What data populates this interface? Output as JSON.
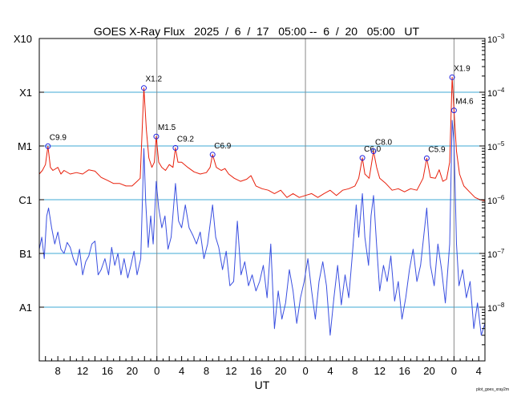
{
  "chart_data": {
    "type": "line",
    "title": "GOES X-Ray Flux   2025  /  6  /  17   05:00 --  6  /  20   05:00   UT",
    "xlabel": "UT",
    "ylabel": "",
    "credit": "plot_goes_xray2m",
    "x_range_hours": [
      0,
      72
    ],
    "x_start": "2025-06-17T05:00",
    "x_end": "2025-06-20T05:00",
    "x_tick_labels": [
      {
        "h": 3,
        "label": "8"
      },
      {
        "h": 7,
        "label": "12"
      },
      {
        "h": 11,
        "label": "16"
      },
      {
        "h": 15,
        "label": "20"
      },
      {
        "h": 19,
        "label": "0"
      },
      {
        "h": 23,
        "label": "4"
      },
      {
        "h": 27,
        "label": "8"
      },
      {
        "h": 31,
        "label": "12"
      },
      {
        "h": 35,
        "label": "16"
      },
      {
        "h": 39,
        "label": "20"
      },
      {
        "h": 43,
        "label": "0"
      },
      {
        "h": 47,
        "label": "4"
      },
      {
        "h": 51,
        "label": "8"
      },
      {
        "h": 55,
        "label": "12"
      },
      {
        "h": 59,
        "label": "16"
      },
      {
        "h": 63,
        "label": "20"
      },
      {
        "h": 67,
        "label": "0"
      },
      {
        "h": 71,
        "label": "4"
      }
    ],
    "day_boundaries_hours": [
      19,
      43,
      67
    ],
    "y_scale": "log",
    "y_range_exp": [
      -9,
      -3
    ],
    "y_left_labels": [
      {
        "exp": -3,
        "label": "X10"
      },
      {
        "exp": -4,
        "label": "X1"
      },
      {
        "exp": -5,
        "label": "M1"
      },
      {
        "exp": -6,
        "label": "C1"
      },
      {
        "exp": -7,
        "label": "B1"
      },
      {
        "exp": -8,
        "label": "A1"
      }
    ],
    "y_right_labels": [
      {
        "exp": -3,
        "label": "10"
      },
      {
        "exp": -4,
        "label": "10"
      },
      {
        "exp": -5,
        "label": "10"
      },
      {
        "exp": -6,
        "label": "10"
      },
      {
        "exp": -7,
        "label": "10"
      },
      {
        "exp": -8,
        "label": "10"
      }
    ],
    "flare_class_gridlines_exp": [
      -4,
      -5,
      -6,
      -7,
      -8
    ],
    "colors": {
      "long_channel": "#e8200c",
      "short_channel": "#3a4fe0",
      "overlap": "#7a14b8",
      "gridline": "#3fa9d6",
      "day_line": "#8a8a8a",
      "flare_marker": "#2222dd"
    },
    "flares": [
      {
        "label": "C9.9",
        "h": 1.4,
        "flux": 9.9e-06
      },
      {
        "label": "X1.2",
        "h": 16.9,
        "flux": 0.00012
      },
      {
        "label": "M1.5",
        "h": 18.9,
        "flux": 1.5e-05
      },
      {
        "label": "C9.2",
        "h": 22.0,
        "flux": 9.2e-06
      },
      {
        "label": "C6.9",
        "h": 28.0,
        "flux": 6.9e-06
      },
      {
        "label": "C6.0",
        "h": 52.2,
        "flux": 6e-06
      },
      {
        "label": "C8.0",
        "h": 54.0,
        "flux": 8e-06
      },
      {
        "label": "C5.9",
        "h": 62.6,
        "flux": 5.9e-06
      },
      {
        "label": "X1.9",
        "h": 66.7,
        "flux": 0.00019
      },
      {
        "label": "M4.6",
        "h": 67.0,
        "flux": 4.6e-05
      }
    ],
    "series": [
      {
        "channel": "long",
        "points": [
          [
            0,
            3e-06
          ],
          [
            0.5,
            3.5e-06
          ],
          [
            1.0,
            4.5e-06
          ],
          [
            1.4,
            9.9e-06
          ],
          [
            1.8,
            4e-06
          ],
          [
            2.2,
            3.5e-06
          ],
          [
            3,
            4e-06
          ],
          [
            3.5,
            3e-06
          ],
          [
            4,
            3.5e-06
          ],
          [
            5,
            3e-06
          ],
          [
            6,
            3.2e-06
          ],
          [
            7,
            3e-06
          ],
          [
            8,
            3.6e-06
          ],
          [
            9,
            3.4e-06
          ],
          [
            10,
            2.6e-06
          ],
          [
            11,
            2.3e-06
          ],
          [
            12,
            2e-06
          ],
          [
            13,
            2e-06
          ],
          [
            14,
            1.8e-06
          ],
          [
            15,
            1.8e-06
          ],
          [
            15.8,
            2.2e-06
          ],
          [
            16.3,
            2.5e-06
          ],
          [
            16.9,
            0.00012
          ],
          [
            17.3,
            2e-05
          ],
          [
            17.7,
            6e-06
          ],
          [
            18.2,
            4e-06
          ],
          [
            18.6,
            5e-06
          ],
          [
            18.9,
            1.5e-05
          ],
          [
            19.3,
            5e-06
          ],
          [
            19.8,
            4e-06
          ],
          [
            20.4,
            3.5e-06
          ],
          [
            21,
            4.5e-06
          ],
          [
            21.6,
            4e-06
          ],
          [
            22.0,
            9.2e-06
          ],
          [
            22.4,
            5e-06
          ],
          [
            23,
            5e-06
          ],
          [
            24,
            4e-06
          ],
          [
            25,
            3.3e-06
          ],
          [
            26,
            3e-06
          ],
          [
            27,
            3.2e-06
          ],
          [
            27.6,
            4e-06
          ],
          [
            28.0,
            6.9e-06
          ],
          [
            28.6,
            4e-06
          ],
          [
            29.4,
            3.5e-06
          ],
          [
            30,
            3.8e-06
          ],
          [
            30.6,
            3e-06
          ],
          [
            31.5,
            2.5e-06
          ],
          [
            32.5,
            2.2e-06
          ],
          [
            33.5,
            2.4e-06
          ],
          [
            34.2,
            2.8e-06
          ],
          [
            35,
            1.8e-06
          ],
          [
            36,
            1.6e-06
          ],
          [
            37,
            1.5e-06
          ],
          [
            38,
            1.3e-06
          ],
          [
            39,
            1.5e-06
          ],
          [
            40,
            1.1e-06
          ],
          [
            41,
            1.3e-06
          ],
          [
            42,
            1.1e-06
          ],
          [
            43,
            1.2e-06
          ],
          [
            44,
            1.3e-06
          ],
          [
            45,
            1.1e-06
          ],
          [
            46,
            1.3e-06
          ],
          [
            47,
            1.5e-06
          ],
          [
            48,
            1.2e-06
          ],
          [
            49,
            1.5e-06
          ],
          [
            50,
            1.6e-06
          ],
          [
            51,
            1.8e-06
          ],
          [
            51.6,
            2.5e-06
          ],
          [
            52.2,
            6e-06
          ],
          [
            52.6,
            3e-06
          ],
          [
            53.3,
            2.5e-06
          ],
          [
            54.0,
            8e-06
          ],
          [
            54.5,
            4e-06
          ],
          [
            55,
            2.5e-06
          ],
          [
            56,
            2e-06
          ],
          [
            57,
            1.5e-06
          ],
          [
            58,
            1.6e-06
          ],
          [
            59,
            1.4e-06
          ],
          [
            60,
            1.6e-06
          ],
          [
            61,
            1.5e-06
          ],
          [
            62,
            2.5e-06
          ],
          [
            62.6,
            5.9e-06
          ],
          [
            63.2,
            2.6e-06
          ],
          [
            64,
            2.5e-06
          ],
          [
            64.6,
            3.6e-06
          ],
          [
            65.2,
            2.2e-06
          ],
          [
            65.8,
            2.4e-06
          ],
          [
            66.3,
            5e-06
          ],
          [
            66.7,
            0.00019
          ],
          [
            67.0,
            4.6e-05
          ],
          [
            67.4,
            8e-06
          ],
          [
            67.9,
            3e-06
          ],
          [
            68.6,
            1.8e-06
          ],
          [
            69.5,
            1.4e-06
          ],
          [
            70.4,
            1.1e-06
          ],
          [
            71.2,
            1e-06
          ],
          [
            72,
            9.5e-07
          ]
        ]
      },
      {
        "channel": "short",
        "points": [
          [
            0,
            1.2e-07
          ],
          [
            0.4,
            2e-07
          ],
          [
            0.8,
            8e-08
          ],
          [
            1.2,
            5e-07
          ],
          [
            1.5,
            7e-07
          ],
          [
            2,
            3e-07
          ],
          [
            2.5,
            1.5e-07
          ],
          [
            3,
            2.5e-07
          ],
          [
            3.5,
            1.2e-07
          ],
          [
            4,
            1e-07
          ],
          [
            4.5,
            1.6e-07
          ],
          [
            5,
            1.3e-07
          ],
          [
            5.5,
            8e-08
          ],
          [
            6,
            6e-08
          ],
          [
            6.5,
            1.2e-07
          ],
          [
            7,
            4e-08
          ],
          [
            7.5,
            7e-08
          ],
          [
            8,
            9e-08
          ],
          [
            8.5,
            1.5e-07
          ],
          [
            9,
            1.7e-07
          ],
          [
            9.5,
            4e-08
          ],
          [
            10,
            5e-08
          ],
          [
            10.6,
            8e-08
          ],
          [
            11.2,
            4e-08
          ],
          [
            11.7,
            1.3e-07
          ],
          [
            12.2,
            6e-08
          ],
          [
            12.7,
            1e-07
          ],
          [
            13.2,
            4e-08
          ],
          [
            13.7,
            8e-08
          ],
          [
            14.3,
            3.5e-08
          ],
          [
            14.8,
            6e-08
          ],
          [
            15.3,
            1.1e-07
          ],
          [
            15.8,
            4e-08
          ],
          [
            16.4,
            8e-08
          ],
          [
            16.9,
            9e-06
          ],
          [
            17.2,
            9e-07
          ],
          [
            17.6,
            1.3e-07
          ],
          [
            18.0,
            5e-07
          ],
          [
            18.4,
            1.5e-07
          ],
          [
            18.9,
            2.2e-06
          ],
          [
            19.3,
            7e-07
          ],
          [
            19.8,
            3e-07
          ],
          [
            20.3,
            5e-07
          ],
          [
            20.8,
            1.2e-07
          ],
          [
            21.3,
            2e-07
          ],
          [
            22.0,
            2e-06
          ],
          [
            22.5,
            4e-07
          ],
          [
            23,
            3e-07
          ],
          [
            23.6,
            8e-07
          ],
          [
            24.2,
            3e-07
          ],
          [
            24.8,
            2.2e-07
          ],
          [
            25.4,
            1.5e-07
          ],
          [
            26,
            2.5e-07
          ],
          [
            26.6,
            8e-08
          ],
          [
            27.2,
            1.5e-07
          ],
          [
            28.0,
            8e-07
          ],
          [
            28.5,
            2e-07
          ],
          [
            29,
            1.3e-07
          ],
          [
            29.6,
            5e-08
          ],
          [
            30.2,
            1.1e-07
          ],
          [
            30.8,
            2.5e-08
          ],
          [
            31.4,
            3e-08
          ],
          [
            32,
            4e-07
          ],
          [
            32.6,
            4e-08
          ],
          [
            33.2,
            7e-08
          ],
          [
            33.8,
            2.5e-08
          ],
          [
            34.4,
            4e-08
          ],
          [
            35,
            2e-08
          ],
          [
            35.6,
            3e-08
          ],
          [
            36.2,
            6e-08
          ],
          [
            36.8,
            1.5e-08
          ],
          [
            37.4,
            1.5e-07
          ],
          [
            38,
            4e-09
          ],
          [
            38.6,
            2e-08
          ],
          [
            39.2,
            6e-09
          ],
          [
            39.8,
            1.2e-08
          ],
          [
            40.4,
            5e-08
          ],
          [
            41,
            2e-08
          ],
          [
            41.6,
            5e-09
          ],
          [
            42.2,
            1.5e-08
          ],
          [
            42.8,
            3e-08
          ],
          [
            43.4,
            8e-08
          ],
          [
            44,
            2e-08
          ],
          [
            44.6,
            6e-09
          ],
          [
            45.2,
            3e-08
          ],
          [
            45.8,
            7e-08
          ],
          [
            46.4,
            2.5e-08
          ],
          [
            47,
            3e-09
          ],
          [
            47.6,
            1.5e-08
          ],
          [
            48.2,
            6e-08
          ],
          [
            48.8,
            1.1e-08
          ],
          [
            49.4,
            4e-08
          ],
          [
            50,
            1.5e-08
          ],
          [
            50.6,
            1e-07
          ],
          [
            51.2,
            8e-07
          ],
          [
            51.6,
            2e-07
          ],
          [
            52.2,
            1.3e-06
          ],
          [
            52.6,
            2e-07
          ],
          [
            53.2,
            6e-08
          ],
          [
            53.6,
            5e-07
          ],
          [
            54.0,
            1.2e-06
          ],
          [
            54.5,
            1.4e-07
          ],
          [
            55,
            2e-08
          ],
          [
            55.6,
            6e-08
          ],
          [
            56.2,
            3e-08
          ],
          [
            56.8,
            9e-08
          ],
          [
            57.4,
            1.3e-08
          ],
          [
            58,
            3e-08
          ],
          [
            58.6,
            6e-09
          ],
          [
            59.2,
            1.5e-08
          ],
          [
            59.8,
            5e-08
          ],
          [
            60.4,
            1.2e-07
          ],
          [
            61,
            3e-08
          ],
          [
            61.6,
            6e-08
          ],
          [
            62.6,
            7e-07
          ],
          [
            63.2,
            6e-08
          ],
          [
            63.8,
            2.5e-08
          ],
          [
            64.4,
            1.5e-07
          ],
          [
            65,
            5e-08
          ],
          [
            65.6,
            1.2e-08
          ],
          [
            66.3,
            1.5e-07
          ],
          [
            66.7,
            3e-05
          ],
          [
            67.0,
            1.2e-05
          ],
          [
            67.4,
            1.5e-07
          ],
          [
            67.8,
            2.5e-08
          ],
          [
            68.4,
            5e-08
          ],
          [
            69,
            1.5e-08
          ],
          [
            69.6,
            3e-08
          ],
          [
            70.2,
            4e-09
          ],
          [
            70.8,
            1.2e-08
          ],
          [
            71.4,
            3e-09
          ],
          [
            72,
            5e-09
          ]
        ]
      }
    ]
  }
}
